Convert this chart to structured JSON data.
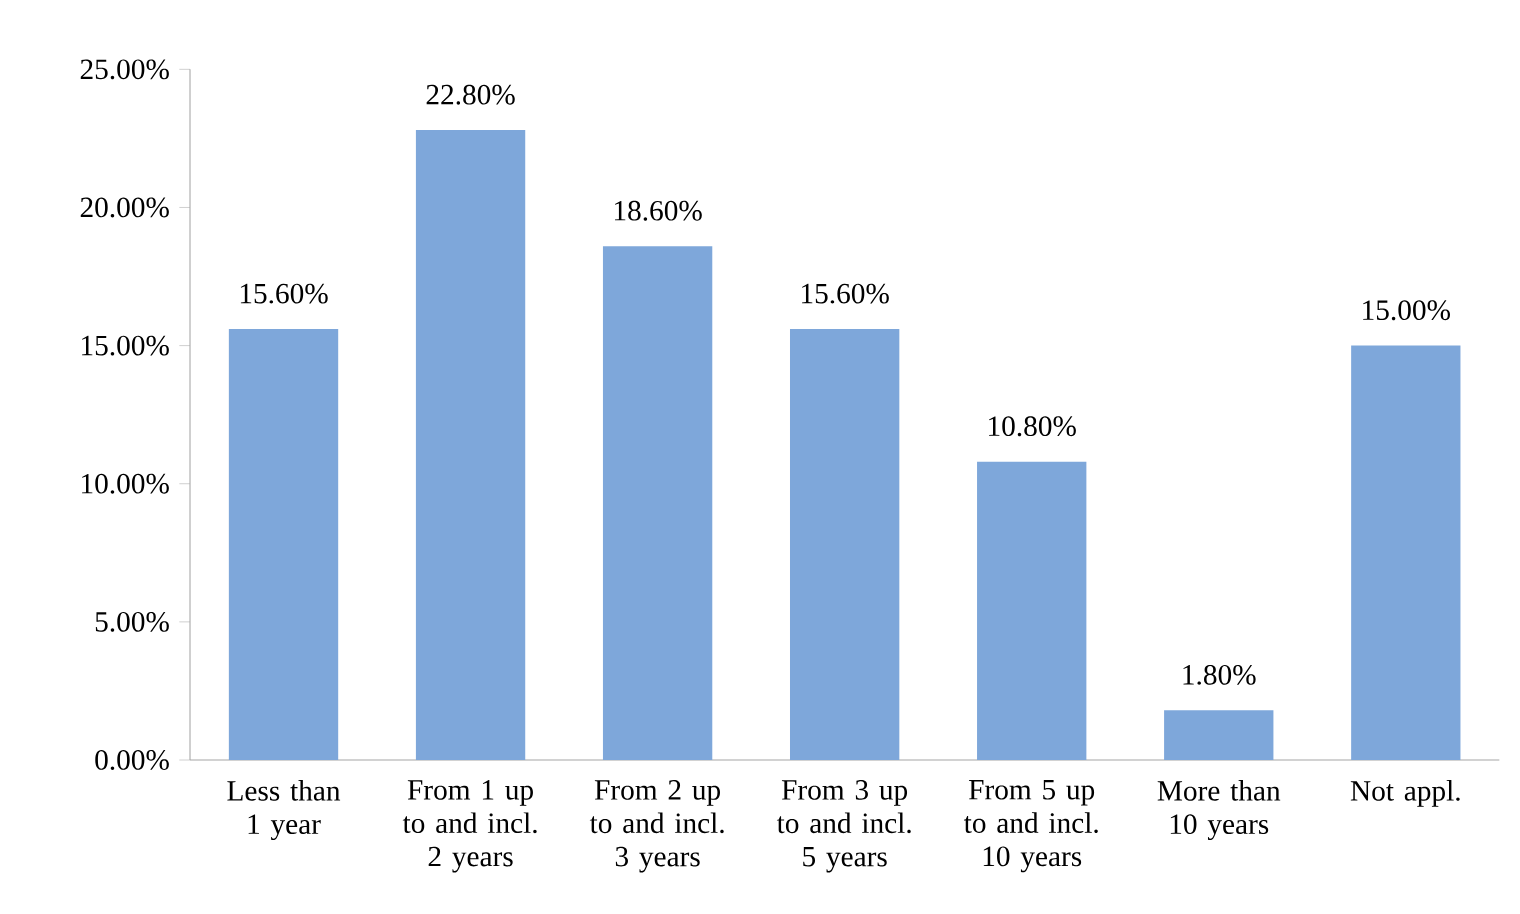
{
  "chart_data": {
    "type": "bar",
    "categories": [
      "Less than 1 year",
      "From 1 up to and incl. 2 years",
      "From 2 up to and incl. 3 years",
      "From 3 up to and incl. 5 years",
      "From 5 up to and incl. 10 years",
      "More than 10 years",
      "Not appl."
    ],
    "values": [
      15.6,
      22.8,
      18.6,
      15.6,
      10.8,
      1.8,
      15.0
    ],
    "value_labels": [
      "15.60%",
      "22.80%",
      "18.60%",
      "15.60%",
      "10.80%",
      "1.80%",
      "15.00%"
    ],
    "color": "#7ea7da",
    "ylim": [
      0,
      25
    ],
    "yticks": [
      {
        "value": 0,
        "label": "0.00%"
      },
      {
        "value": 5,
        "label": "5.00%"
      },
      {
        "value": 10,
        "label": "10.00%"
      },
      {
        "value": 15,
        "label": "15.00%"
      },
      {
        "value": 20,
        "label": "20.00%"
      },
      {
        "value": 25,
        "label": "25.00%"
      }
    ],
    "grid": false
  }
}
